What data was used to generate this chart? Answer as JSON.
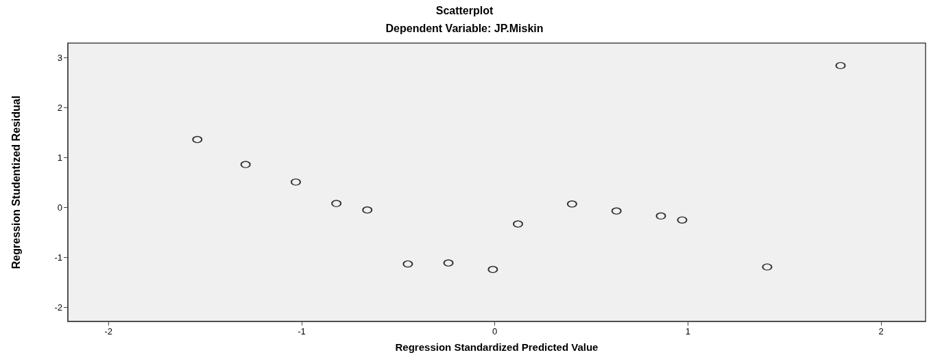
{
  "chart_data": {
    "type": "scatter",
    "title": "Scatterplot",
    "subtitle": "Dependent Variable: JP.Miskin",
    "xlabel": "Regression Standardized Predicted Value",
    "ylabel": "Regression Studentized Residual",
    "x": [
      -1.54,
      -1.29,
      -1.03,
      -0.82,
      -0.66,
      -0.45,
      -0.24,
      -0.01,
      0.12,
      0.4,
      0.63,
      0.86,
      0.97,
      1.41,
      1.79
    ],
    "series": [
      {
        "color": "#000000",
        "values": [
          1.36,
          0.86,
          0.51,
          0.08,
          -0.05,
          -1.13,
          -1.11,
          -1.24,
          -0.33,
          0.07,
          -0.07,
          -0.17,
          -0.25,
          -1.19,
          2.84
        ]
      }
    ],
    "xlim": [
      -2.21,
      2.23
    ],
    "xticks": [
      -2,
      -1,
      0,
      1,
      2
    ],
    "ylim": [
      -2.28,
      3.29
    ],
    "yticks": [
      -2,
      -1,
      0,
      1,
      2,
      3
    ],
    "grid": false,
    "marker": "circle"
  }
}
